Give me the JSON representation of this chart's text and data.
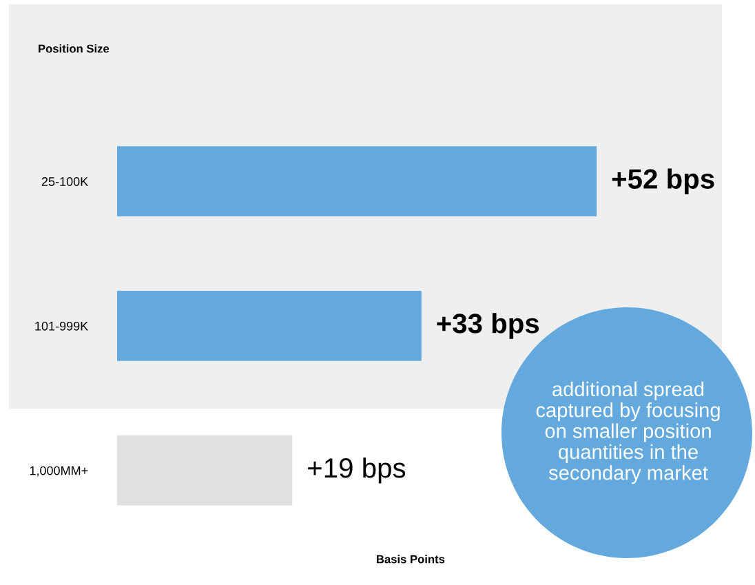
{
  "chart_data": {
    "type": "bar",
    "orientation": "horizontal",
    "categories": [
      "25-100K",
      "101-999K",
      "1,000MM+"
    ],
    "values": [
      52,
      33,
      19
    ],
    "colors": [
      "#63a9dd",
      "#63a9dd",
      "#dfe0e2"
    ],
    "value_labels": [
      "+52 bps",
      "+33 bps",
      "+19 bps"
    ],
    "xlabel": "Basis Points",
    "ylabel": "Position Size",
    "annotations": [
      "additional spread\ncaptured by focusing\non smaller position\nquantities in the\nsecondary market"
    ],
    "grid": false,
    "legend": false
  }
}
